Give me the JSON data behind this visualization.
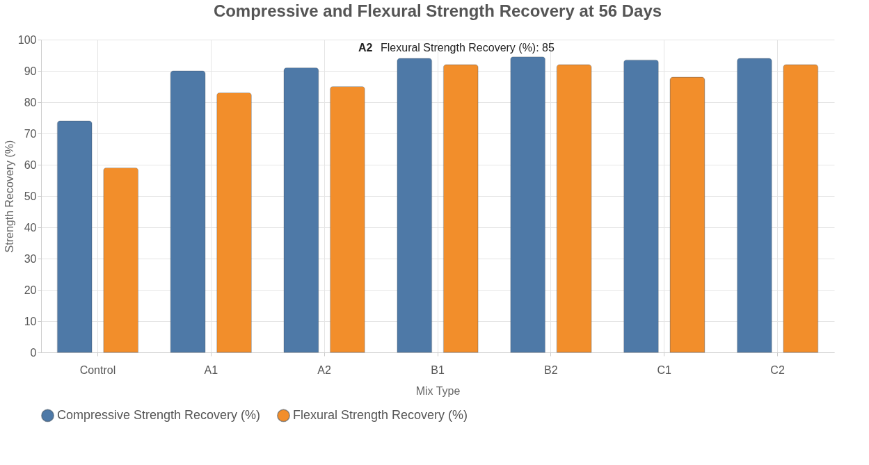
{
  "chart_data": {
    "type": "bar",
    "title": "Compressive and Flexural Strength Recovery at 56 Days",
    "xlabel": "Mix Type",
    "ylabel": "Strength Recovery (%)",
    "categories": [
      "Control",
      "A1",
      "A2",
      "B1",
      "B2",
      "C1",
      "C2"
    ],
    "series": [
      {
        "name": "Compressive Strength Recovery (%)",
        "color": "#4e79a7",
        "values": [
          74,
          90,
          91,
          94,
          94.5,
          93.5,
          94
        ]
      },
      {
        "name": "Flexural Strength Recovery (%)",
        "color": "#f28e2b",
        "values": [
          59,
          83,
          85,
          92,
          92,
          88,
          92
        ]
      }
    ],
    "ylim": [
      0,
      100
    ],
    "yticks": [
      0,
      10,
      20,
      30,
      40,
      50,
      60,
      70,
      80,
      90,
      100
    ],
    "grid": true,
    "legend": "bottom",
    "annotations": [
      "A2",
      "Flexural Strength Recovery (%): 85"
    ]
  }
}
